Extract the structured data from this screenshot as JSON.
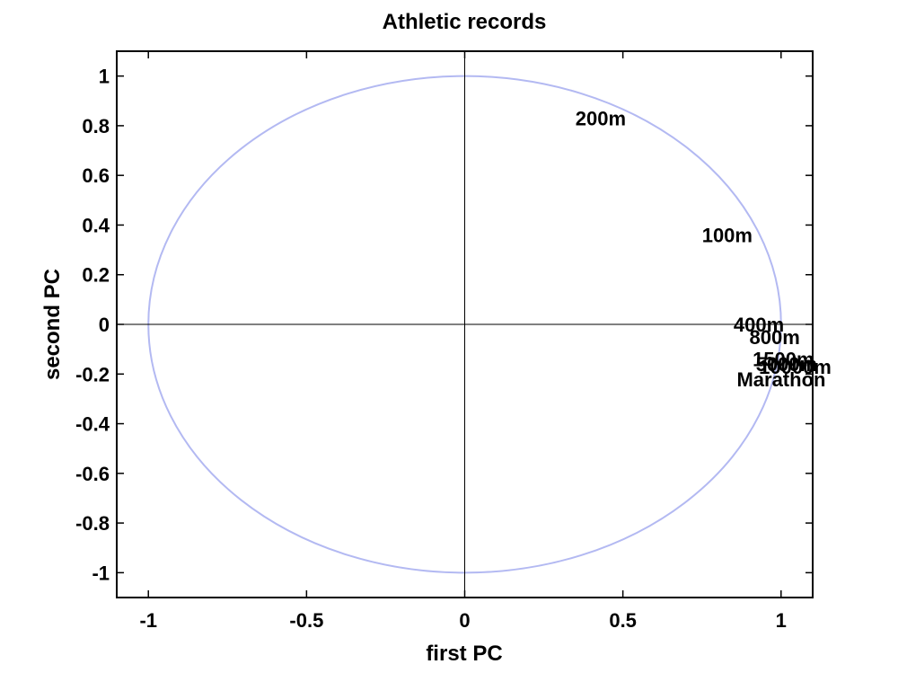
{
  "chart_data": {
    "type": "scatter",
    "title": "Athletic records",
    "xlabel": "first PC",
    "ylabel": "second PC",
    "xlim": [
      -1.1,
      1.1
    ],
    "ylim": [
      -1.1,
      1.1
    ],
    "xticks": [
      -1,
      -0.5,
      0,
      0.5,
      1
    ],
    "xtick_labels": [
      "-1",
      "-0.5",
      "0",
      "0.5",
      "1"
    ],
    "yticks": [
      1,
      0.8,
      0.6,
      0.4,
      0.2,
      0,
      -0.2,
      -0.4,
      -0.6,
      -0.8,
      -1
    ],
    "ytick_labels": [
      "1",
      "0.8",
      "0.6",
      "0.4",
      "0.2",
      "0",
      "-0.2",
      "-0.4",
      "-0.6",
      "-0.8",
      "-1"
    ],
    "grid": false,
    "unit_circle": {
      "radius": 1,
      "color": "#b3b9f2"
    },
    "points": [
      {
        "label": "200m",
        "x": 0.35,
        "y": 0.83
      },
      {
        "label": "100m",
        "x": 0.75,
        "y": 0.36
      },
      {
        "label": "400m",
        "x": 0.85,
        "y": 0.0
      },
      {
        "label": "800m",
        "x": 0.9,
        "y": -0.05
      },
      {
        "label": "1500m",
        "x": 0.91,
        "y": -0.14
      },
      {
        "label": "5000m",
        "x": 0.92,
        "y": -0.16
      },
      {
        "label": "10000m",
        "x": 0.93,
        "y": -0.17
      },
      {
        "label": "Marathon",
        "x": 0.86,
        "y": -0.22
      }
    ]
  }
}
